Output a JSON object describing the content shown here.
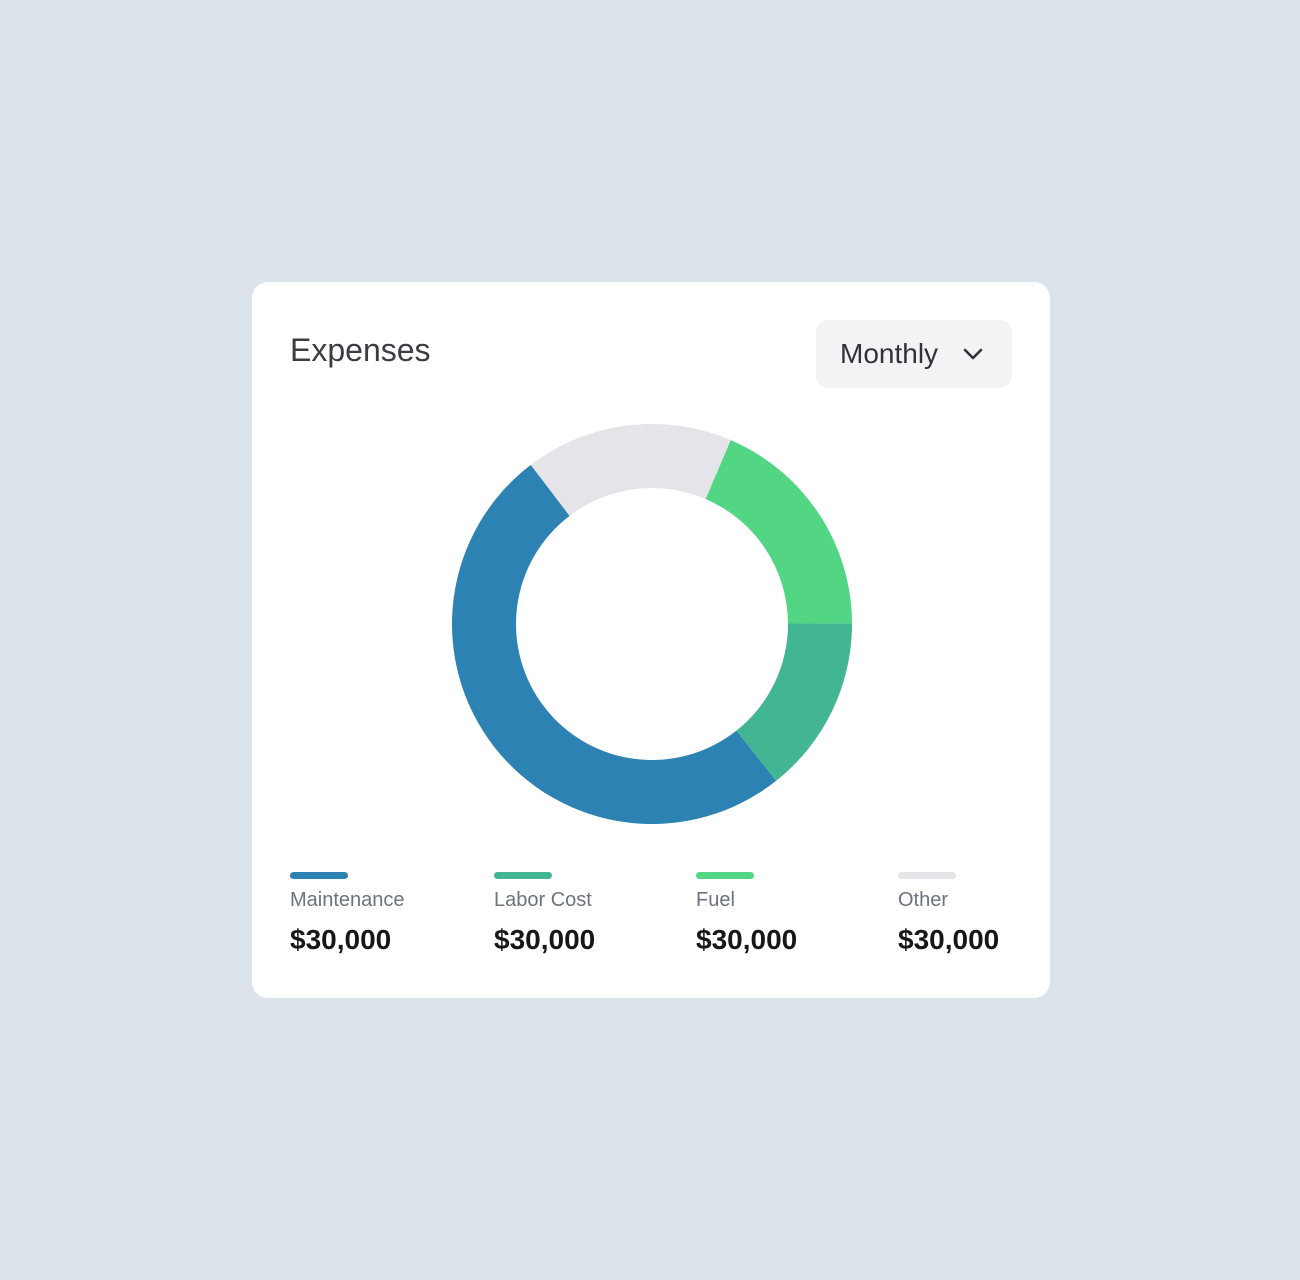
{
  "chart_data": {
    "type": "donut",
    "title": "Expenses",
    "period": "Monthly",
    "categories": [
      "Maintenance",
      "Labor Cost",
      "Fuel",
      "Other"
    ],
    "values": [
      50.3,
      14.4,
      18.5,
      16.8
    ],
    "colors": [
      "#2b82b3",
      "#42b693",
      "#52d684",
      "#e4e4e9"
    ],
    "legend_amounts": [
      "$30,000",
      "$30,000",
      "$30,000",
      "$30,000"
    ]
  }
}
